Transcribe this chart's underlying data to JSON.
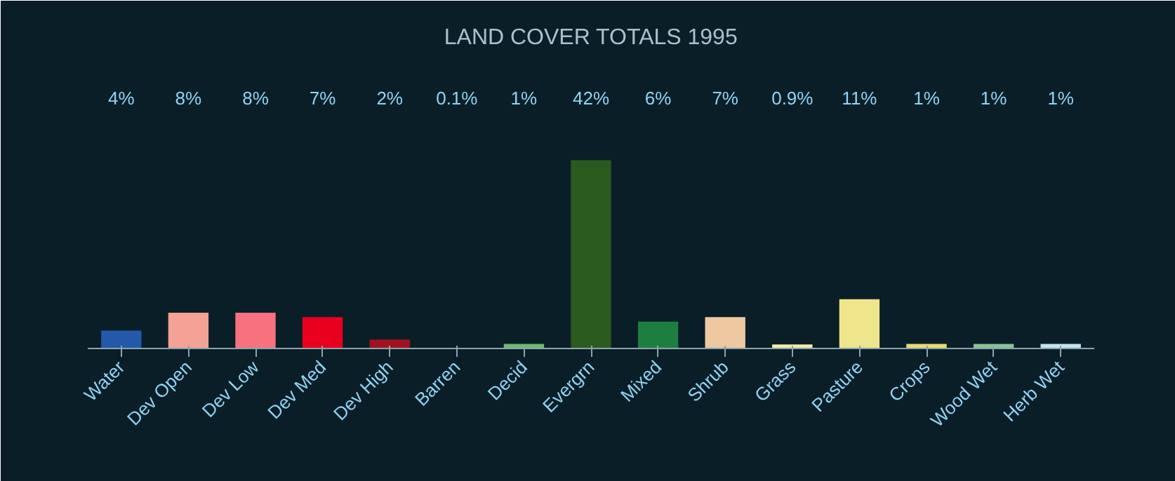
{
  "chart_data": {
    "type": "bar",
    "title": "LAND COVER TOTALS 1995",
    "categories": [
      "Water",
      "Dev Open",
      "Dev Low",
      "Dev Med",
      "Dev High",
      "Barren",
      "Decid",
      "Evergrn",
      "Mixed",
      "Shrub",
      "Grass",
      "Pasture",
      "Crops",
      "Wood Wet",
      "Herb Wet"
    ],
    "values": [
      4,
      8,
      8,
      7,
      2,
      0.1,
      1,
      42,
      6,
      7,
      0.9,
      11,
      1,
      1,
      1
    ],
    "value_labels": [
      "4%",
      "8%",
      "8%",
      "7%",
      "2%",
      "0.1%",
      "1%",
      "42%",
      "6%",
      "7%",
      "0.9%",
      "11%",
      "1%",
      "1%",
      "1%"
    ],
    "colors": [
      "#2359a8",
      "#f4a196",
      "#f7727e",
      "#e8001e",
      "#a3101f",
      "#b5afa3",
      "#6fb76f",
      "#2b5a1f",
      "#1d7f3f",
      "#eec8a1",
      "#f2eca9",
      "#efe58a",
      "#e9dc73",
      "#86c495",
      "#c4e4f0"
    ],
    "grid": false
  }
}
